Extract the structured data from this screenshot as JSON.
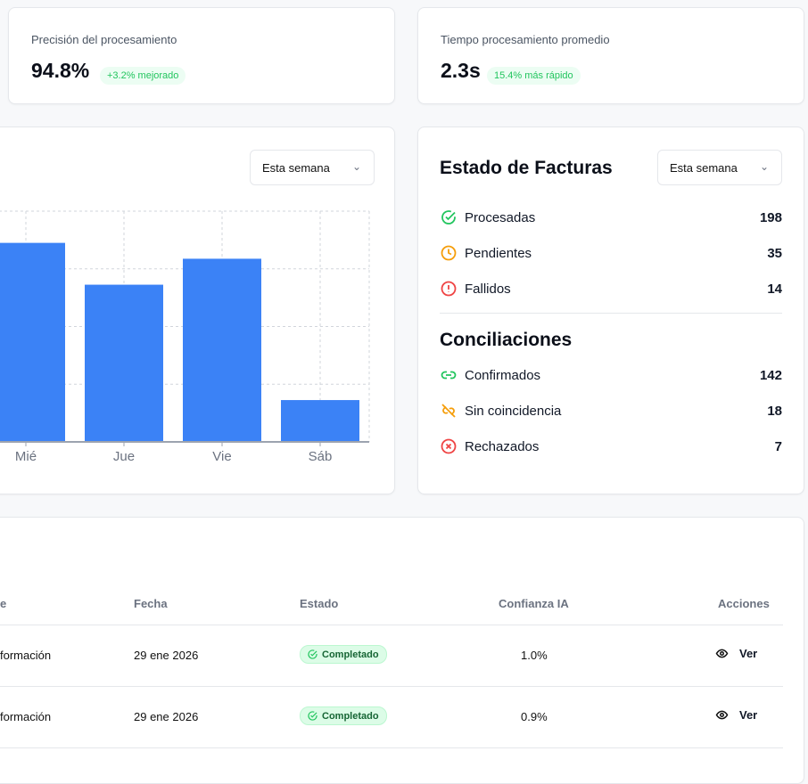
{
  "kpis": [
    {
      "label": "Precisión del procesamiento",
      "value": "94.8%",
      "badge": "+3.2% mejorado"
    },
    {
      "label": "Tiempo procesamiento promedio",
      "value": "2.3s",
      "badge": "15.4% más rápido"
    }
  ],
  "chart_card": {
    "period_select": "Esta semana"
  },
  "chart_data": {
    "type": "bar",
    "categories": [
      "Mié",
      "Jue",
      "Vie",
      "Sáb"
    ],
    "values": [
      69,
      54.5,
      63.5,
      14.5
    ],
    "ylim": [
      0,
      80
    ],
    "grid": true,
    "color": "#3b82f6",
    "xlabel": "",
    "ylabel": ""
  },
  "status_card": {
    "title": "Estado de Facturas",
    "period_select": "Esta semana",
    "invoices": [
      {
        "label": "Procesadas",
        "value": "198",
        "icon": "check-circle-icon",
        "color": "#22c55e"
      },
      {
        "label": "Pendientes",
        "value": "35",
        "icon": "clock-icon",
        "color": "#f59e0b"
      },
      {
        "label": "Fallidos",
        "value": "14",
        "icon": "alert-circle-icon",
        "color": "#ef4444"
      }
    ],
    "reconciliation_title": "Conciliaciones",
    "reconciliations": [
      {
        "label": "Confirmados",
        "value": "142",
        "icon": "link-icon",
        "color": "#22c55e"
      },
      {
        "label": "Sin coincidencia",
        "value": "18",
        "icon": "unlink-icon",
        "color": "#f59e0b"
      },
      {
        "label": "Rechazados",
        "value": "7",
        "icon": "x-circle-icon",
        "color": "#ef4444"
      }
    ]
  },
  "table": {
    "headers": [
      "e",
      "Fecha",
      "Estado",
      "Confianza IA",
      "Acciones"
    ],
    "rows": [
      {
        "name": "formación",
        "date": "29 ene 2026",
        "status": "Completado",
        "confidence": "1.0%",
        "action": "Ver"
      },
      {
        "name": "formación",
        "date": "29 ene 2026",
        "status": "Completado",
        "confidence": "0.9%",
        "action": "Ver"
      }
    ]
  }
}
